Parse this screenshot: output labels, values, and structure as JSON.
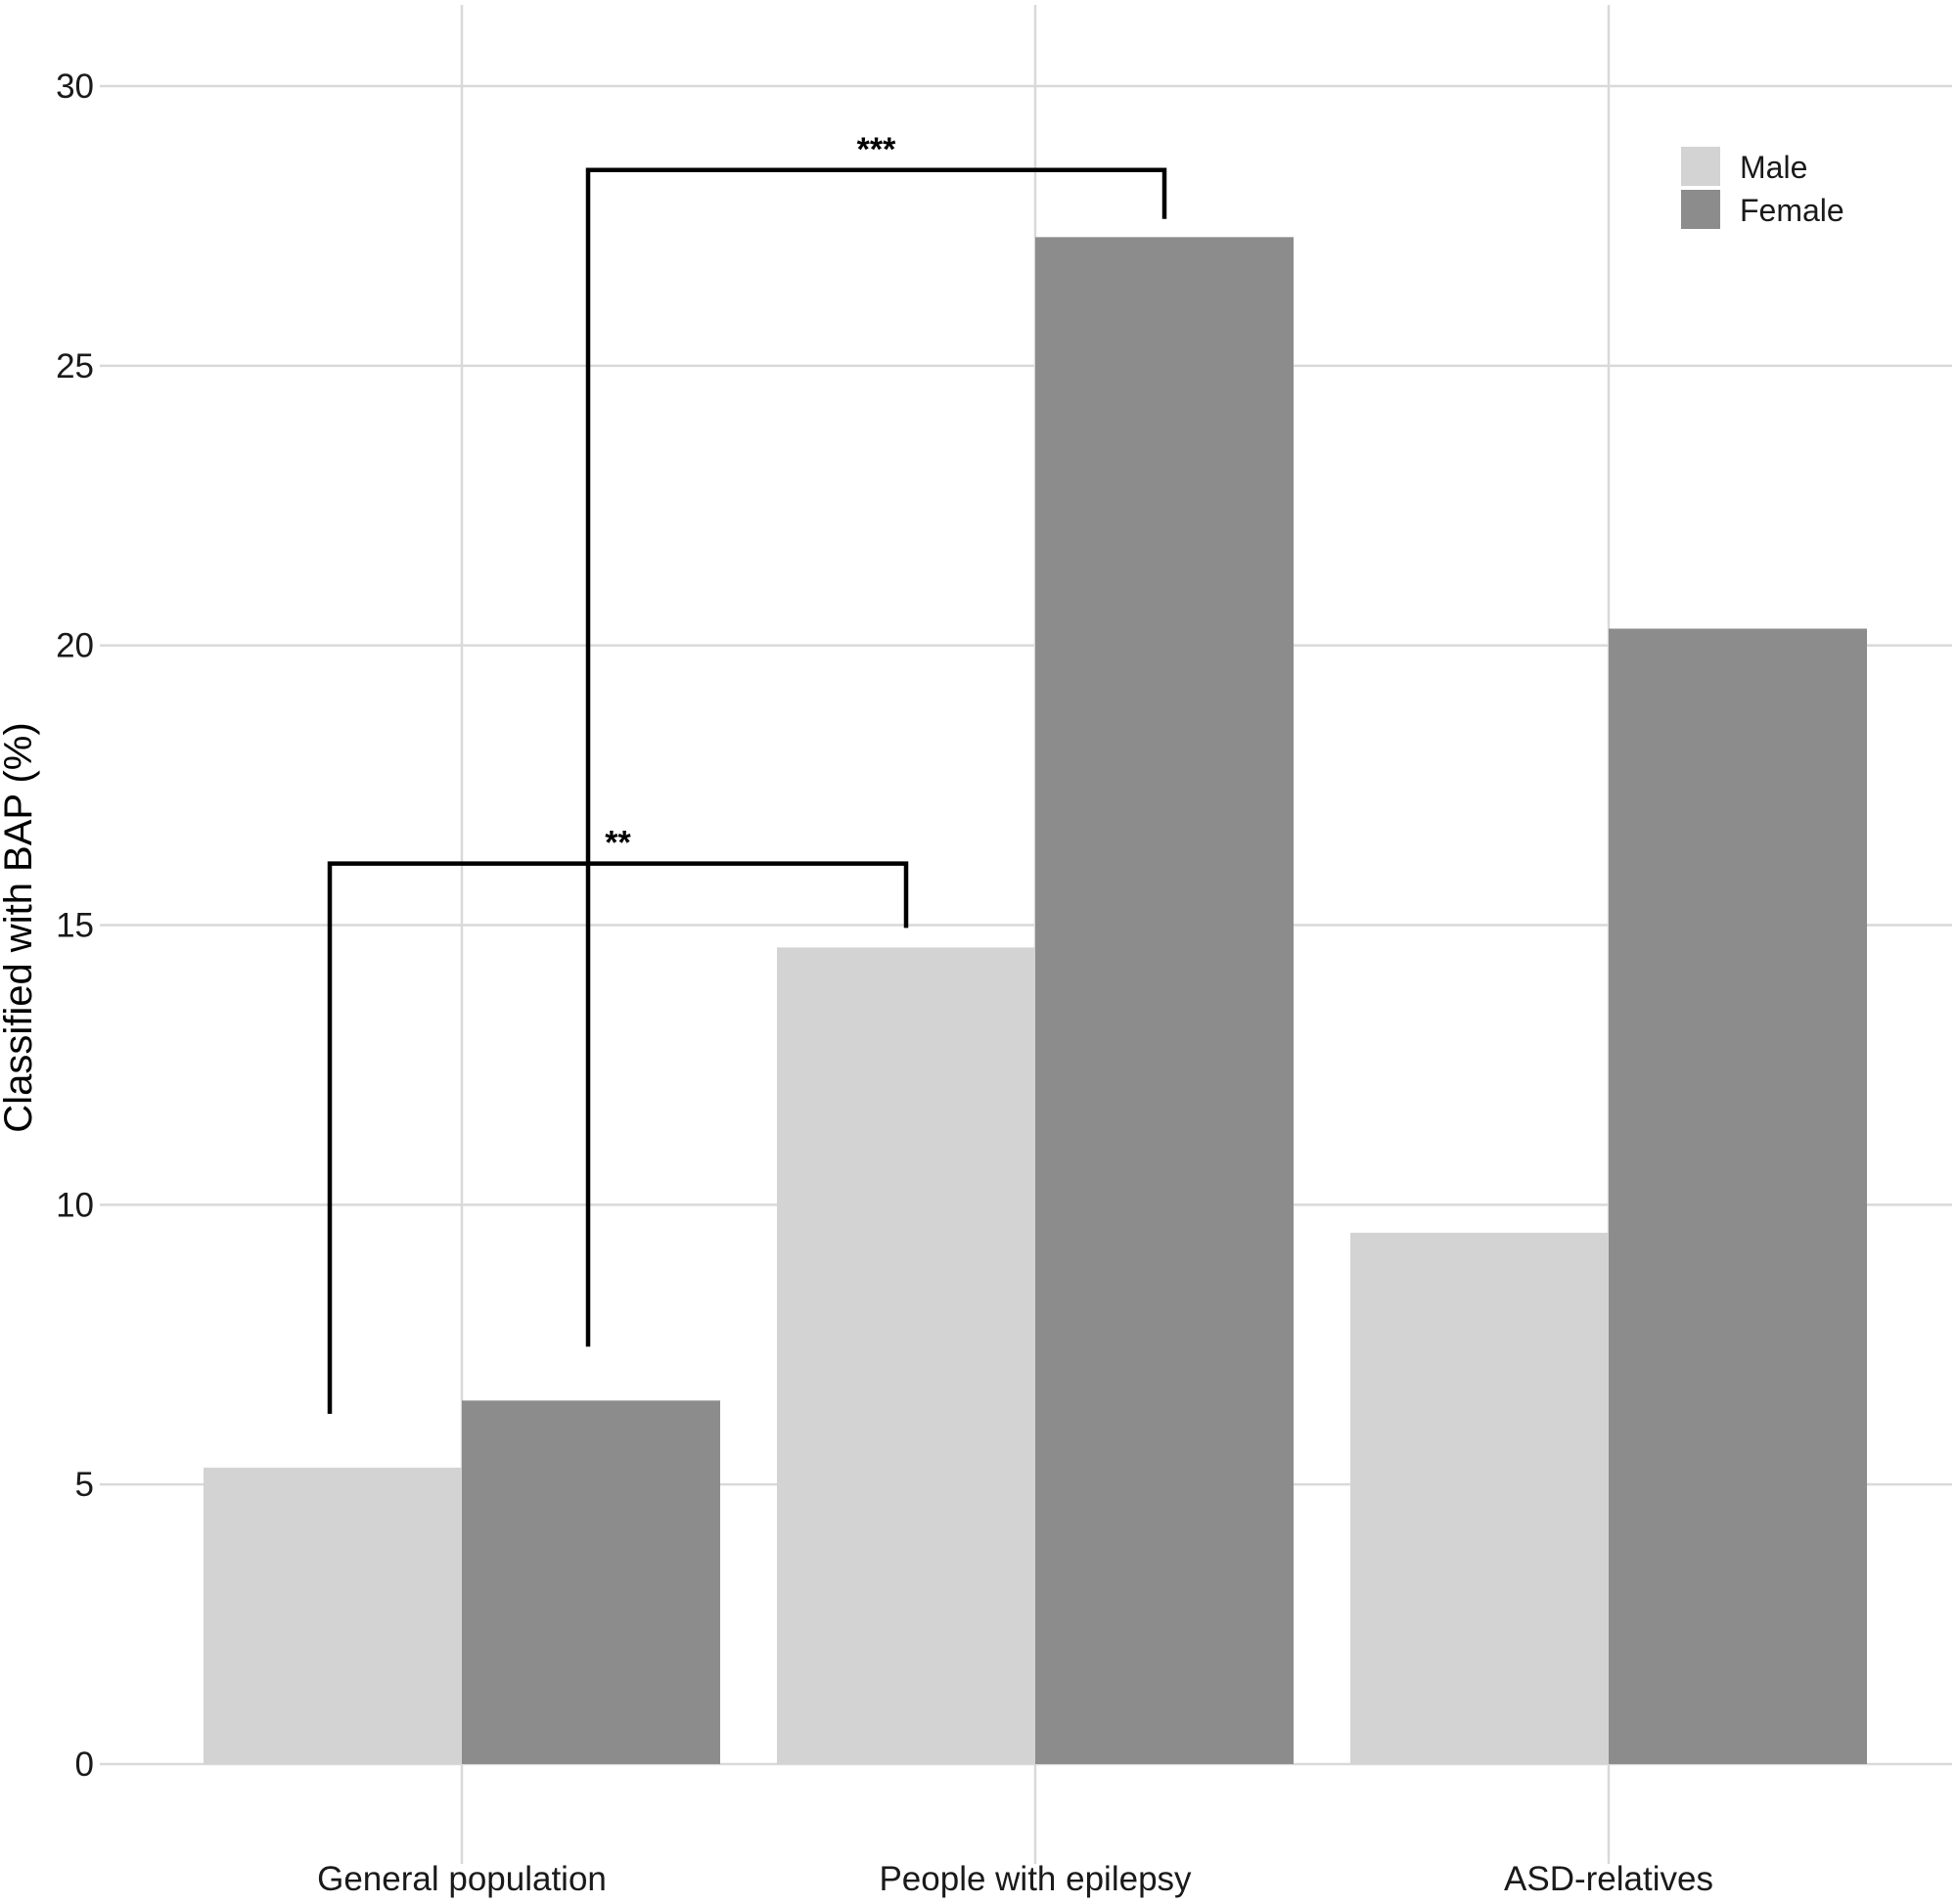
{
  "chart_data": {
    "type": "bar",
    "title": "",
    "xlabel": "",
    "ylabel": "Classified with BAP (%)",
    "categories": [
      "General population",
      "People with epilepsy",
      "ASD-relatives"
    ],
    "series": [
      {
        "name": "Male",
        "color": "#d3d3d3",
        "values": [
          5.3,
          14.6,
          9.5
        ]
      },
      {
        "name": "Female",
        "color": "#8c8c8c",
        "values": [
          6.5,
          27.3,
          20.3
        ]
      }
    ],
    "ylim": [
      0,
      30
    ],
    "yticks": [
      "0",
      "5",
      "10",
      "15",
      "20",
      "25",
      "30"
    ],
    "grid": true,
    "legend_position": "top-right",
    "annotations": [
      {
        "label": "***",
        "from": "General population / Female",
        "to": "People with epilepsy / Female",
        "level": 28.5
      },
      {
        "label": "**",
        "from": "General population / Male",
        "to": "People with epilepsy / Male",
        "level": 16.1
      }
    ]
  }
}
